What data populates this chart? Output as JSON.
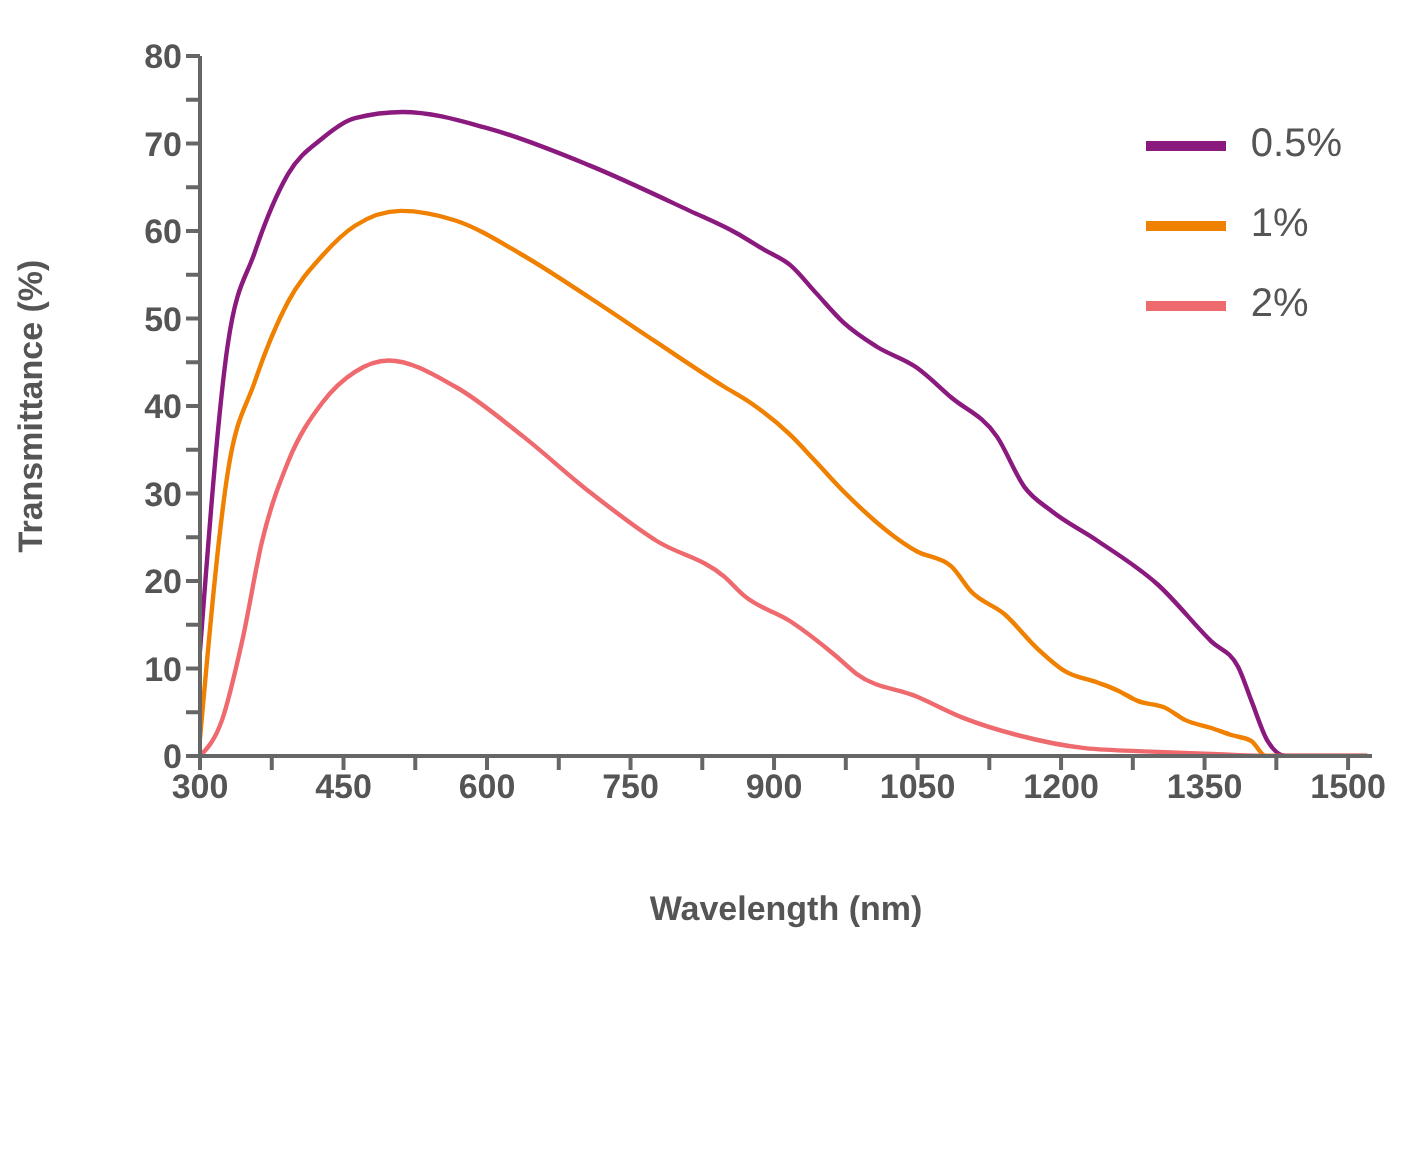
{
  "chart_data": {
    "type": "line",
    "xlabel": "Wavelength (nm)",
    "ylabel": "Transmittance (%)",
    "xlim": [
      300,
      1525
    ],
    "xticks": [
      300,
      {
        "value": 375,
        "label": null
      },
      450,
      {
        "value": 525,
        "label": null
      },
      600,
      {
        "value": 675,
        "label": null
      },
      750,
      {
        "value": 825,
        "label": null
      },
      900,
      {
        "value": 975,
        "label": null
      },
      1050,
      {
        "value": 1125,
        "label": null
      },
      1200,
      {
        "value": 1275,
        "label": null
      },
      1350,
      {
        "value": 1425,
        "label": null
      },
      1500
    ],
    "ylim": [
      0,
      80
    ],
    "yticks": [
      0,
      {
        "value": 5,
        "label": null
      },
      10,
      {
        "value": 15,
        "label": null
      },
      20,
      {
        "value": 25,
        "label": null
      },
      30,
      {
        "value": 35,
        "label": null
      },
      40,
      {
        "value": 45,
        "label": null
      },
      50,
      {
        "value": 55,
        "label": null
      },
      60,
      {
        "value": 65,
        "label": null
      },
      70,
      {
        "value": 75,
        "label": null
      },
      80
    ],
    "grid": false,
    "legend": "top right",
    "marker": "none",
    "line_style": "solid",
    "series": [
      {
        "name": "0.5%",
        "color": "#8b1a7e",
        "x": [
          300,
          329,
          357,
          392,
          428,
          462,
          512,
          602,
          707,
          812,
          860,
          889,
          917,
          944,
          973,
          1007,
          1049,
          1085,
          1133,
          1162,
          1190,
          1238,
          1301,
          1357,
          1385,
          1399,
          1416,
          1435,
          1470,
          1520
        ],
        "values": [
          12,
          47,
          57.5,
          66.5,
          70.6,
          72.9,
          73.6,
          71.7,
          67.5,
          62.3,
          59.8,
          57.9,
          56.1,
          52.9,
          49.5,
          46.8,
          44.4,
          41,
          36.5,
          30.7,
          28,
          24.6,
          19.6,
          13.1,
          10.2,
          6.3,
          1.7,
          0,
          0,
          0
        ]
      },
      {
        "name": "1%",
        "color": "#f08000",
        "x": [
          300,
          329,
          357,
          392,
          428,
          462,
          510,
          567,
          638,
          707,
          777,
          848,
          875,
          917,
          944,
          973,
          1049,
          1085,
          1106,
          1141,
          1175,
          1204,
          1238,
          1259,
          1280,
          1309,
          1330,
          1357,
          1378,
          1399,
          1414,
          1470,
          1520
        ],
        "values": [
          2,
          32.4,
          42.7,
          51.9,
          57.2,
          60.6,
          62.3,
          61.2,
          57.2,
          52.4,
          47.3,
          42.2,
          40.4,
          36.7,
          33.6,
          30.2,
          23.4,
          21.7,
          18.8,
          16.2,
          12.3,
          9.7,
          8.4,
          7.5,
          6.3,
          5.5,
          4.1,
          3.2,
          2.4,
          1.7,
          0,
          0,
          0
        ]
      },
      {
        "name": "2%",
        "color": "#ee6a6e",
        "x": [
          300,
          323,
          344,
          365,
          392,
          428,
          462,
          497,
          567,
          638,
          707,
          777,
          848,
          869,
          917,
          965,
          986,
          1049,
          1099,
          1154,
          1225,
          1294,
          1364,
          1420,
          1520
        ],
        "values": [
          0,
          4.1,
          13.1,
          24.6,
          33.6,
          40.4,
          43.9,
          45.2,
          42.2,
          36.5,
          30.2,
          24.6,
          20.5,
          18.3,
          15.4,
          11.4,
          9.4,
          6.8,
          4.3,
          2.4,
          0.9,
          0.5,
          0.2,
          0,
          0
        ]
      }
    ]
  }
}
